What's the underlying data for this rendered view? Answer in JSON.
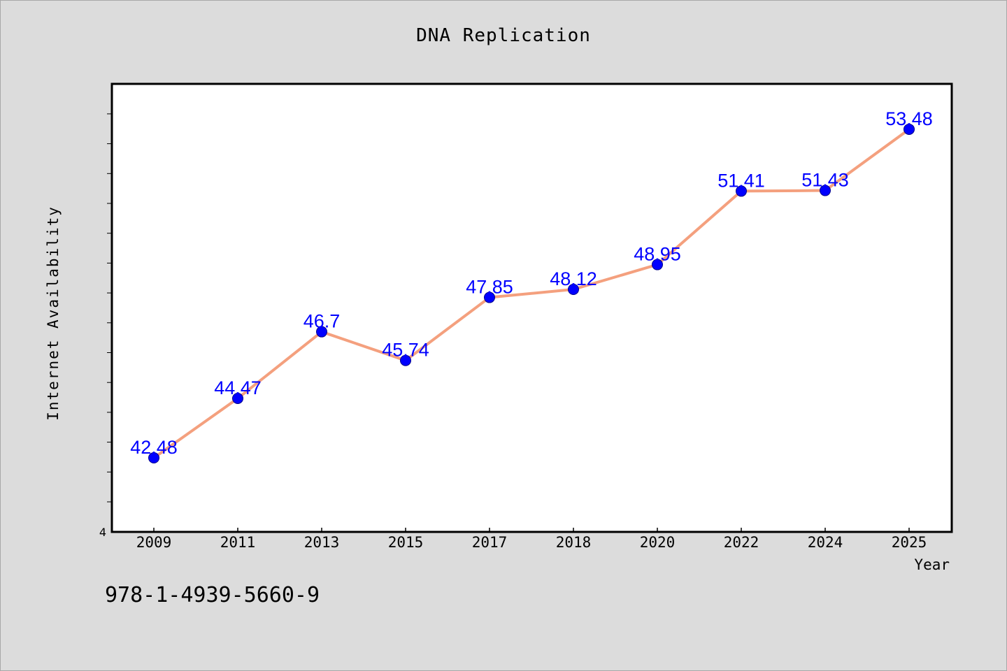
{
  "chart_data": {
    "type": "line",
    "title": "DNA Replication",
    "xlabel": "Year",
    "ylabel": "Internet Availability",
    "categories": [
      "2009",
      "2011",
      "2013",
      "2015",
      "2017",
      "2018",
      "2020",
      "2022",
      "2024",
      "2025"
    ],
    "series": [
      {
        "values": [
          42.48,
          44.47,
          46.7,
          45.74,
          47.85,
          48.12,
          48.95,
          51.41,
          51.43,
          53.48
        ],
        "labels": [
          "42.48",
          "44.47",
          "46.7",
          "45.74",
          "47.85",
          "48.12",
          "48.95",
          "51.41",
          "51.43",
          "53.48"
        ],
        "line_color": "#f4a07e",
        "marker_color": "#0000ff"
      }
    ],
    "ylim": [
      40,
      55
    ],
    "yticks": [
      4
    ],
    "grid": false,
    "legend": "none"
  },
  "footer": {
    "isbn": "978-1-4939-5660-9"
  }
}
